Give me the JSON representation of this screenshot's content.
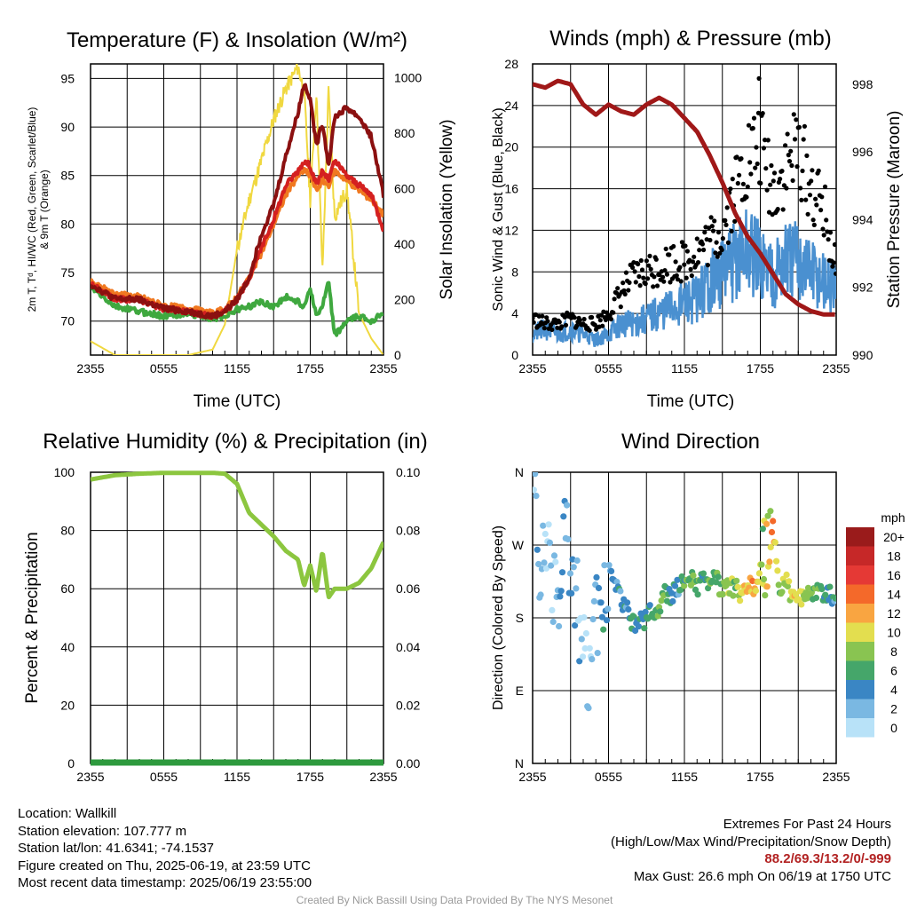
{
  "chart_data": [
    {
      "type": "line",
      "title": "Temperature (F) & Insolation (W/m²)",
      "xlabel": "Time (UTC)",
      "ylabel": "2m T, T_d, HI/WC (Red, Green, Scarlet/Blue) & 9m T (Orange)",
      "y2label": "Solar Insolation (Yellow)",
      "x_ticks": [
        "2355",
        "0555",
        "1155",
        "1755",
        "2355"
      ],
      "ylim": [
        66.5,
        96.5
      ],
      "y_ticks": [
        70,
        75,
        80,
        85,
        90,
        95
      ],
      "y2lim": [
        0,
        1050
      ],
      "y2_ticks": [
        0,
        200,
        400,
        600,
        800,
        1000
      ],
      "x_hours": [
        0,
        2,
        4,
        6,
        8,
        10,
        11,
        12,
        13,
        14,
        15,
        16,
        17,
        17.5,
        18,
        18.5,
        19,
        19.5,
        20,
        21,
        22,
        23,
        24
      ],
      "series": [
        {
          "color": "#8b1010",
          "values": [
            73.8,
            72.3,
            72.2,
            71.3,
            71.0,
            70.5,
            71.0,
            72.2,
            74.5,
            79.0,
            82.0,
            87.0,
            91.5,
            94.5,
            93.0,
            88.0,
            90.5,
            86.0,
            91.0,
            92.0,
            91.0,
            89.0,
            83.0
          ]
        },
        {
          "color": "#d42020",
          "values": [
            73.8,
            72.3,
            72.2,
            71.3,
            71.0,
            70.5,
            71.0,
            72.2,
            74.5,
            77.5,
            80.5,
            84.0,
            85.5,
            86.5,
            86.0,
            84.0,
            85.5,
            84.5,
            86.5,
            85.0,
            84.0,
            83.0,
            79.5
          ]
        },
        {
          "color": "#f07820",
          "values": [
            74.0,
            72.8,
            72.5,
            71.6,
            71.3,
            70.8,
            71.2,
            72.5,
            74.5,
            77.0,
            80.0,
            83.0,
            85.0,
            85.5,
            85.0,
            83.5,
            84.5,
            84.0,
            85.5,
            84.5,
            83.5,
            82.5,
            81.0
          ]
        },
        {
          "color": "#3fa83f",
          "values": [
            73.5,
            71.5,
            71.0,
            70.5,
            70.8,
            70.3,
            70.5,
            71.2,
            71.5,
            72.0,
            71.5,
            72.5,
            72.0,
            71.5,
            73.5,
            70.5,
            71.5,
            74.0,
            68.5,
            70.0,
            70.5,
            70.0,
            71.0
          ]
        }
      ],
      "insolation": {
        "color": "#f0d840",
        "values": [
          50,
          0,
          0,
          0,
          0,
          20,
          110,
          380,
          560,
          700,
          850,
          960,
          1040,
          950,
          560,
          950,
          300,
          950,
          500,
          600,
          150,
          60,
          0
        ]
      }
    },
    {
      "type": "scatter",
      "title": "Winds (mph) & Pressure (mb)",
      "xlabel": "Time (UTC)",
      "ylabel": "Sonic Wind & Gust (Blue, Black)",
      "y2label": "Station Pressure (Maroon)",
      "x_ticks": [
        "2355",
        "0555",
        "1155",
        "1755",
        "2355"
      ],
      "ylim": [
        0,
        28
      ],
      "y_ticks": [
        0,
        4,
        8,
        12,
        16,
        20,
        24,
        28
      ],
      "y2lim": [
        990,
        998.6
      ],
      "y2_ticks": [
        990,
        992,
        994,
        996,
        998
      ],
      "x_hours": [
        0,
        1,
        2,
        3,
        4,
        5,
        6,
        7,
        8,
        9,
        10,
        11,
        12,
        13,
        14,
        15,
        16,
        17,
        18,
        19,
        20,
        21,
        22,
        23,
        24
      ],
      "wind": {
        "color": "#4a90d0",
        "values": [
          2,
          2.5,
          2,
          2.5,
          2,
          1.5,
          2,
          3,
          3,
          3.5,
          4,
          4.5,
          5,
          5.5,
          7,
          8,
          9,
          10,
          9,
          8,
          9,
          9,
          8,
          7,
          6
        ]
      },
      "gust": {
        "color": "#000000",
        "values": [
          3.5,
          3,
          3,
          3.5,
          3,
          3,
          4,
          6,
          7.5,
          8,
          8.5,
          9,
          9,
          10,
          11,
          12,
          16,
          19,
          20,
          16,
          18,
          20,
          16,
          14,
          8
        ]
      },
      "pressure": {
        "color": "#a01818",
        "values": [
          998.0,
          997.9,
          998.1,
          998.0,
          997.4,
          997.1,
          997.4,
          997.2,
          997.1,
          997.4,
          997.6,
          997.4,
          997.0,
          996.6,
          995.9,
          995.1,
          994.2,
          993.5,
          993.0,
          992.4,
          991.8,
          991.5,
          991.3,
          991.2,
          991.2
        ]
      },
      "gust_max": 26.6
    },
    {
      "type": "line",
      "title": "Relative Humidity (%) & Precipitation (in)",
      "ylabel": "Percent & Precipitation",
      "x_ticks": [
        "2355",
        "0555",
        "1155",
        "1755",
        "2355"
      ],
      "ylim": [
        0,
        100
      ],
      "y_ticks": [
        0,
        20,
        40,
        60,
        80,
        100
      ],
      "y2lim": [
        0,
        0.1
      ],
      "y2_ticks": [
        "0.00",
        "0.02",
        "0.04",
        "0.06",
        "0.08",
        "0.10"
      ],
      "x_hours": [
        0,
        2,
        4,
        6,
        8,
        10,
        11,
        12,
        13,
        14,
        15,
        16,
        17,
        17.5,
        18,
        18.5,
        19,
        19.5,
        20,
        21,
        22,
        23,
        24
      ],
      "rh": {
        "color": "#8cc63f",
        "values": [
          97.5,
          99,
          99.5,
          99.8,
          99.8,
          99.8,
          99.5,
          96,
          86,
          82,
          78,
          73,
          70,
          61,
          68,
          59,
          73,
          57,
          60,
          60,
          62,
          67,
          76
        ]
      },
      "precip": {
        "color": "#2e9a3e",
        "values": [
          0,
          0,
          0,
          0,
          0,
          0,
          0,
          0,
          0,
          0,
          0,
          0,
          0,
          0,
          0,
          0,
          0,
          0,
          0,
          0,
          0,
          0,
          0
        ]
      }
    },
    {
      "type": "scatter",
      "title": "Wind Direction",
      "ylabel": "Direction (Colored By Speed)",
      "x_ticks": [
        "2355",
        "0555",
        "1155",
        "1755",
        "2355"
      ],
      "y_ticks": [
        "N",
        "E",
        "S",
        "W",
        "N"
      ],
      "ylim": [
        0,
        360
      ],
      "x_hours": [
        0.2,
        0.5,
        1.0,
        1.5,
        2.0,
        2.5,
        3.0,
        3.5,
        4.0,
        4.5,
        5.0,
        5.5,
        6.0,
        6.5,
        7.0,
        7.5,
        8.0,
        8.5,
        9.0,
        9.5,
        10.0,
        10.5,
        11.0,
        11.5,
        12.0,
        12.5,
        13.0,
        13.5,
        14.0,
        14.5,
        15.0,
        15.5,
        16.0,
        16.5,
        17.0,
        17.5,
        18.0,
        18.5,
        19.0,
        19.5,
        20.0,
        20.5,
        21.0,
        21.5,
        22.0,
        22.5,
        23.0,
        23.5,
        24.0
      ],
      "direction_deg": [
        340,
        200,
        290,
        210,
        200,
        320,
        240,
        200,
        150,
        100,
        180,
        185,
        250,
        220,
        200,
        190,
        170,
        175,
        180,
        190,
        195,
        210,
        205,
        220,
        225,
        230,
        220,
        225,
        215,
        230,
        210,
        220,
        215,
        210,
        220,
        215,
        240,
        210,
        300,
        215,
        230,
        205,
        210,
        200,
        210,
        215,
        205,
        210,
        205
      ],
      "speed_mph": [
        1,
        2,
        1,
        1,
        2,
        3,
        4,
        2,
        1,
        1,
        3,
        4,
        3,
        4,
        4,
        4,
        5,
        4,
        5,
        6,
        7,
        6,
        5,
        4,
        6,
        8,
        6,
        5,
        7,
        6,
        8,
        9,
        7,
        10,
        11,
        12,
        9,
        10,
        13,
        7,
        8,
        10,
        11,
        9,
        8,
        7,
        6,
        5,
        4
      ],
      "legend": {
        "title": "mph",
        "labels": [
          "20+",
          "18",
          "16",
          "14",
          "12",
          "10",
          "8",
          "6",
          "4",
          "2",
          "0"
        ],
        "colors": [
          "#9a1b1b",
          "#c62828",
          "#e53935",
          "#f4692a",
          "#f9a541",
          "#e3de4f",
          "#89c451",
          "#45a66a",
          "#3a86c4",
          "#7ab8e2",
          "#b8e2f8"
        ]
      }
    }
  ],
  "info": {
    "location": "Location: Wallkill",
    "elevation": "Station elevation: 107.777 m",
    "latlon": "Station lat/lon: 41.6341; -74.1537",
    "created": "Figure created on Thu, 2025-06-19, at 23:59 UTC",
    "recent": "Most recent data timestamp: 2025/06/19 23:55:00"
  },
  "extremes": {
    "title": "Extremes For Past 24 Hours",
    "subtitle": "(High/Low/Max Wind/Precipitation/Snow Depth)",
    "values": "88.2/69.3/13.2/0/-999",
    "gust": "Max Gust: 26.6 mph On 06/19 at 1750 UTC"
  },
  "credit": "Created By Nick Bassill Using Data Provided By The NYS Mesonet"
}
